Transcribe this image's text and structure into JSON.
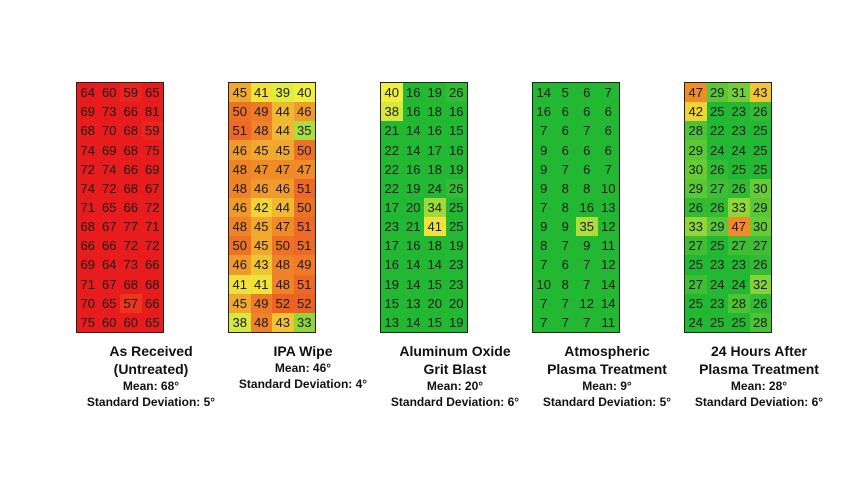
{
  "chart_data": {
    "type": "heatmap",
    "color_scale": {
      "low": "#23b832",
      "mid": "#f0f03c",
      "high": "#e81c1c"
    },
    "panels": [
      {
        "title_lines": [
          "As Received",
          "(Untreated)"
        ],
        "mean_label": "Mean: 68°",
        "sd_label": "Standard Deviation: 5°",
        "values": [
          [
            64,
            60,
            59,
            65
          ],
          [
            69,
            73,
            66,
            81
          ],
          [
            68,
            70,
            68,
            59
          ],
          [
            74,
            69,
            68,
            75
          ],
          [
            72,
            74,
            66,
            69
          ],
          [
            74,
            72,
            68,
            67
          ],
          [
            71,
            65,
            66,
            72
          ],
          [
            68,
            67,
            77,
            71
          ],
          [
            66,
            66,
            72,
            72
          ],
          [
            69,
            64,
            73,
            66
          ],
          [
            71,
            67,
            68,
            68
          ],
          [
            70,
            65,
            57,
            66
          ],
          [
            75,
            60,
            60,
            65
          ]
        ]
      },
      {
        "title_lines": [
          "IPA Wipe"
        ],
        "mean_label": "Mean: 46°",
        "sd_label": "Standard Deviation: 4°",
        "values": [
          [
            45,
            41,
            39,
            40
          ],
          [
            50,
            49,
            44,
            46
          ],
          [
            51,
            48,
            44,
            35
          ],
          [
            46,
            45,
            45,
            50
          ],
          [
            48,
            47,
            47,
            47
          ],
          [
            48,
            46,
            46,
            51
          ],
          [
            46,
            42,
            44,
            50
          ],
          [
            48,
            45,
            47,
            51
          ],
          [
            50,
            45,
            50,
            51
          ],
          [
            46,
            43,
            48,
            49
          ],
          [
            41,
            41,
            48,
            51
          ],
          [
            45,
            49,
            52,
            52
          ],
          [
            38,
            48,
            43,
            33
          ]
        ]
      },
      {
        "title_lines": [
          "Aluminum Oxide",
          "Grit Blast"
        ],
        "mean_label": "Mean: 20°",
        "sd_label": "Standard Deviation: 6°",
        "values": [
          [
            40,
            16,
            19,
            26
          ],
          [
            38,
            16,
            18,
            16
          ],
          [
            21,
            14,
            16,
            15
          ],
          [
            22,
            14,
            17,
            16
          ],
          [
            22,
            16,
            18,
            19
          ],
          [
            22,
            19,
            24,
            26
          ],
          [
            17,
            20,
            34,
            25
          ],
          [
            23,
            21,
            41,
            25
          ],
          [
            17,
            16,
            18,
            19
          ],
          [
            16,
            14,
            14,
            23
          ],
          [
            19,
            14,
            15,
            23
          ],
          [
            15,
            13,
            20,
            20
          ],
          [
            13,
            14,
            15,
            19
          ]
        ]
      },
      {
        "title_lines": [
          "Atmospheric",
          "Plasma Treatment"
        ],
        "mean_label": "Mean: 9°",
        "sd_label": "Standard Deviation: 5°",
        "values": [
          [
            14,
            5,
            6,
            7
          ],
          [
            16,
            6,
            6,
            6
          ],
          [
            7,
            6,
            7,
            6
          ],
          [
            9,
            6,
            6,
            6
          ],
          [
            9,
            7,
            6,
            7
          ],
          [
            9,
            8,
            8,
            10
          ],
          [
            7,
            8,
            16,
            13
          ],
          [
            9,
            9,
            35,
            12
          ],
          [
            8,
            7,
            9,
            11
          ],
          [
            7,
            6,
            7,
            12
          ],
          [
            10,
            8,
            7,
            14
          ],
          [
            7,
            7,
            12,
            14
          ],
          [
            7,
            7,
            7,
            11
          ]
        ]
      },
      {
        "title_lines": [
          "24 Hours After",
          "Plasma Treatment"
        ],
        "mean_label": "Mean: 28°",
        "sd_label": "Standard Deviation: 6°",
        "values": [
          [
            47,
            29,
            31,
            43
          ],
          [
            42,
            25,
            23,
            26
          ],
          [
            28,
            22,
            23,
            25
          ],
          [
            29,
            24,
            24,
            25
          ],
          [
            30,
            26,
            25,
            25
          ],
          [
            29,
            27,
            26,
            30
          ],
          [
            26,
            26,
            33,
            29
          ],
          [
            33,
            29,
            47,
            30
          ],
          [
            27,
            25,
            27,
            27
          ],
          [
            25,
            23,
            23,
            26
          ],
          [
            27,
            24,
            24,
            32
          ],
          [
            25,
            23,
            28,
            26
          ],
          [
            24,
            25,
            25,
            28
          ]
        ]
      }
    ]
  }
}
